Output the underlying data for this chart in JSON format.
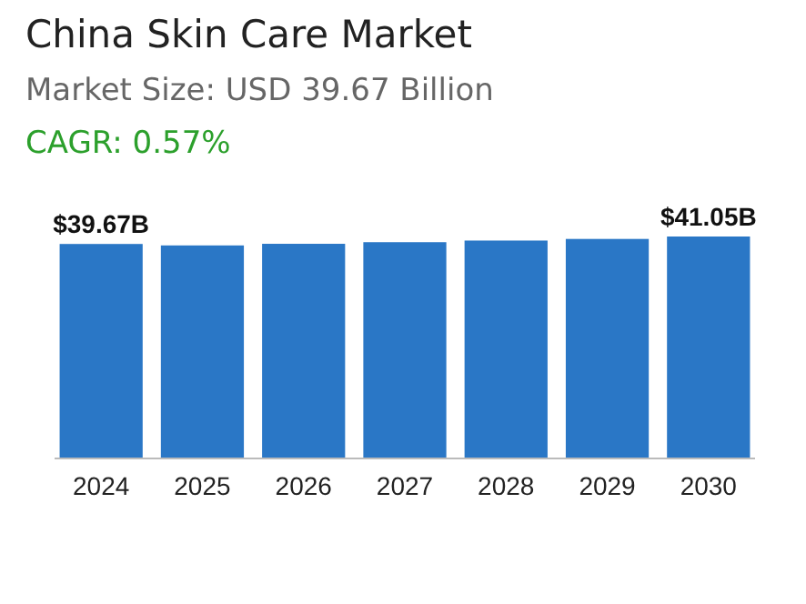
{
  "chart_data": {
    "type": "bar",
    "title": "China Skin Care Market",
    "subtitle": "Market Size: USD 39.67 Billion",
    "annotations": [
      "CAGR: 0.57%"
    ],
    "categories": [
      "2024",
      "2025",
      "2026",
      "2027",
      "2028",
      "2029",
      "2030"
    ],
    "values": [
      39.67,
      39.4,
      39.7,
      40.0,
      40.3,
      40.6,
      41.05
    ],
    "value_labels": [
      "$39.67B",
      null,
      null,
      null,
      null,
      null,
      "$41.05B"
    ],
    "color": "#2a77c6"
  }
}
